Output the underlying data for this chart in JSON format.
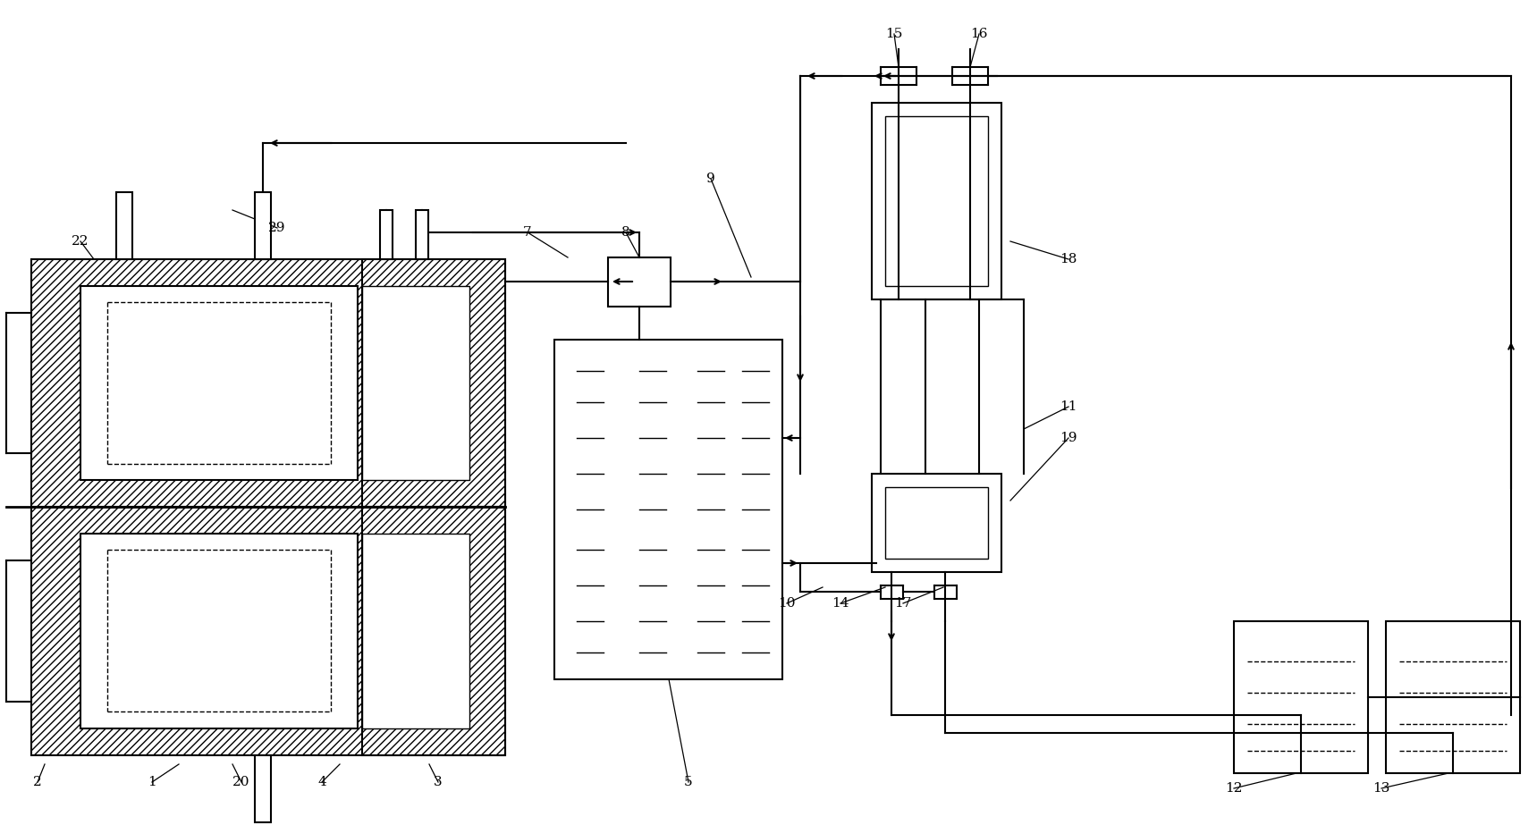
{
  "bg_color": "#ffffff",
  "fig_width": 17.19,
  "fig_height": 9.23,
  "dpi": 100
}
